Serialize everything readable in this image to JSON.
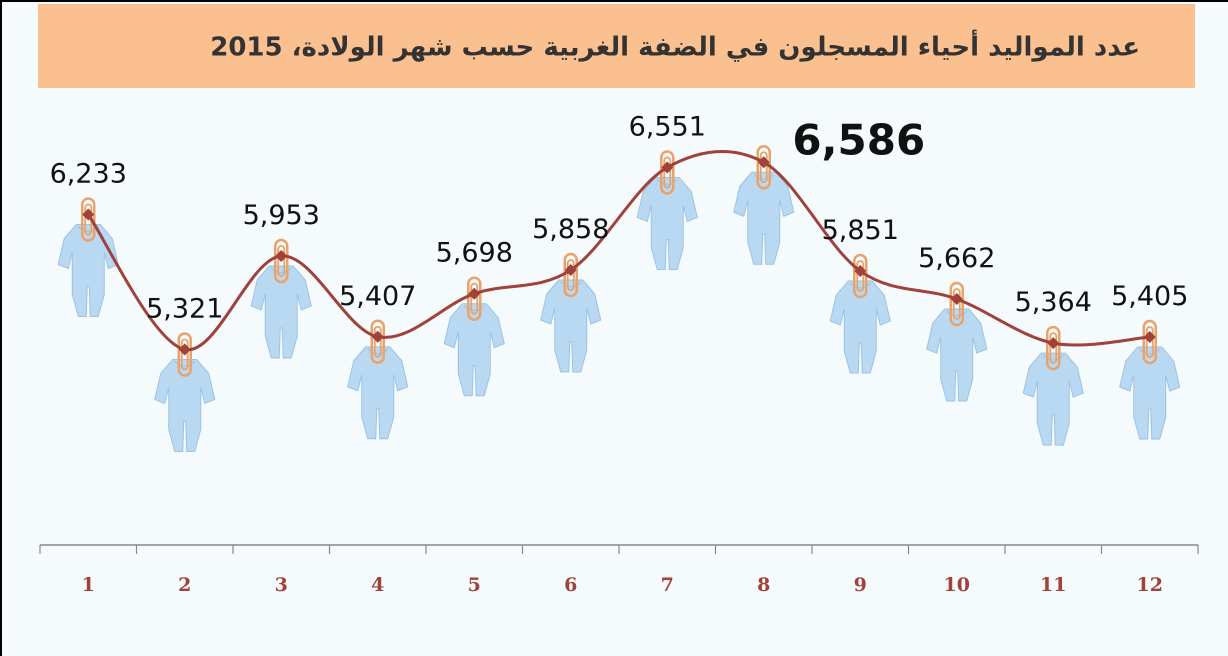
{
  "chart_data": {
    "type": "line",
    "title": "عدد المواليد أحياء المسجلون في الضفة الغربية حسب شهر الولادة، 2015",
    "categories": [
      "1",
      "2",
      "3",
      "4",
      "5",
      "6",
      "7",
      "8",
      "9",
      "10",
      "11",
      "12"
    ],
    "values": [
      6233,
      5321,
      5953,
      5407,
      5698,
      5858,
      6551,
      6586,
      5851,
      5662,
      5364,
      5405
    ],
    "value_labels": [
      "6,233",
      "5,321",
      "5,953",
      "5,407",
      "5,698",
      "5,858",
      "6,551",
      "6,586",
      "5,851",
      "5,662",
      "5,364",
      "5,405"
    ],
    "color": "#a0413a",
    "ylim": [
      4000,
      7000
    ],
    "smooth": true
  }
}
